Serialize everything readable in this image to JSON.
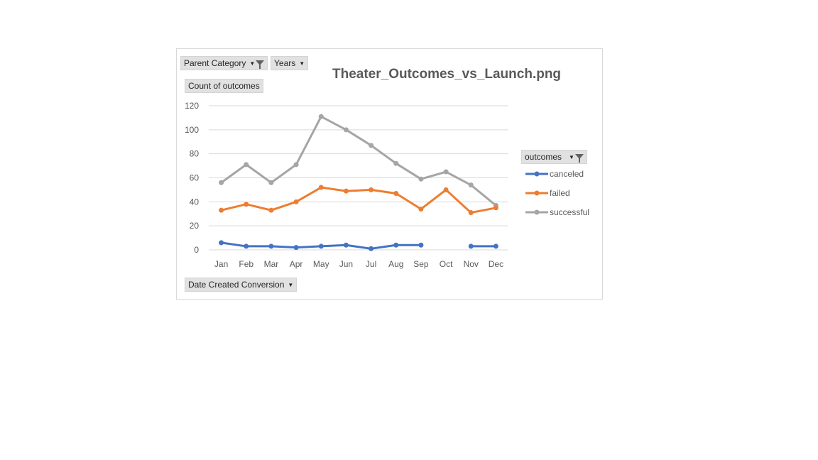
{
  "field_buttons": {
    "parent_category": "Parent Category",
    "years": "Years",
    "count_label": "Count of outcomes",
    "date_created": "Date Created Conversion",
    "outcomes": "outcomes"
  },
  "chart_data": {
    "type": "line",
    "title": "Theater_Outcomes_vs_Launch.png",
    "categories": [
      "Jan",
      "Feb",
      "Mar",
      "Apr",
      "May",
      "Jun",
      "Jul",
      "Aug",
      "Sep",
      "Oct",
      "Nov",
      "Dec"
    ],
    "ylim": [
      0,
      120
    ],
    "yticks": [
      0,
      20,
      40,
      60,
      80,
      100,
      120
    ],
    "grid": true,
    "legend_position": "right",
    "series": [
      {
        "name": "canceled",
        "color": "#4472c4",
        "values": [
          6,
          3,
          3,
          2,
          3,
          4,
          1,
          4,
          4,
          null,
          3,
          3
        ]
      },
      {
        "name": "failed",
        "color": "#ed7d31",
        "values": [
          33,
          38,
          33,
          40,
          52,
          49,
          50,
          47,
          34,
          50,
          31,
          35
        ]
      },
      {
        "name": "successful",
        "color": "#a5a5a5",
        "values": [
          56,
          71,
          56,
          71,
          111,
          100,
          87,
          72,
          59,
          65,
          54,
          37
        ]
      }
    ]
  }
}
